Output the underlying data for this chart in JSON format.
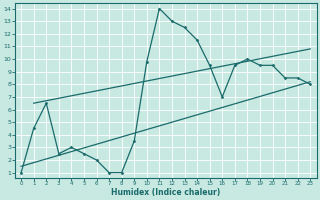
{
  "xlabel": "Humidex (Indice chaleur)",
  "xlim_min": -0.5,
  "xlim_max": 23.5,
  "ylim_min": 0.6,
  "ylim_max": 14.4,
  "xticks": [
    0,
    1,
    2,
    3,
    4,
    5,
    6,
    7,
    8,
    9,
    10,
    11,
    12,
    13,
    14,
    15,
    16,
    17,
    18,
    19,
    20,
    21,
    22,
    23
  ],
  "yticks": [
    1,
    2,
    3,
    4,
    5,
    6,
    7,
    8,
    9,
    10,
    11,
    12,
    13,
    14
  ],
  "bg_color": "#c8e8e2",
  "line_color": "#1a6b6b",
  "grid_color": "#b8ddd8",
  "jagged_x": [
    0,
    1,
    2,
    3,
    4,
    5,
    6,
    7,
    8,
    9,
    10,
    11,
    12,
    13,
    14,
    15,
    16,
    17,
    18,
    19,
    20,
    21,
    22,
    23
  ],
  "jagged_y": [
    1.0,
    4.5,
    6.5,
    2.5,
    3.0,
    2.5,
    2.0,
    1.0,
    1.0,
    3.5,
    9.8,
    14.0,
    13.0,
    12.5,
    11.5,
    9.5,
    7.0,
    9.5,
    10.0,
    9.5,
    9.5,
    8.5,
    8.5,
    8.0
  ],
  "upper_line_x": [
    1,
    23
  ],
  "upper_line_y": [
    6.5,
    10.8
  ],
  "lower_line_x": [
    0,
    23
  ],
  "lower_line_y": [
    1.5,
    8.2
  ]
}
